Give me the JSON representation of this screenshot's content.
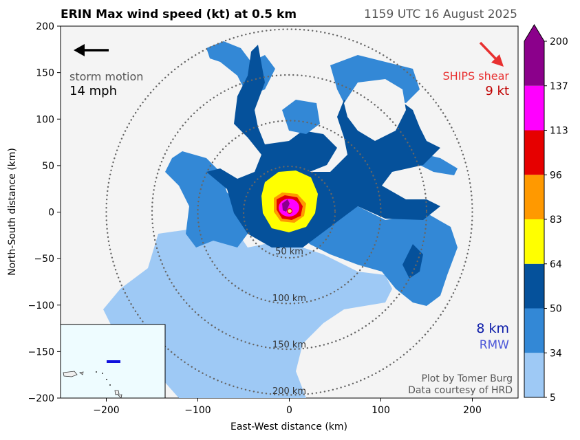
{
  "header": {
    "title": "ERIN Max wind speed (kt) at 0.5 km",
    "timestamp": "1159 UTC 16 August 2025"
  },
  "chart_data": {
    "type": "heatmap",
    "xlabel": "East-West distance (km)",
    "ylabel": "North-South distance (km)",
    "xlim": [
      -250,
      250
    ],
    "ylim": [
      -200,
      200
    ],
    "xticks": [
      -200,
      -100,
      0,
      100,
      200
    ],
    "yticks": [
      200,
      150,
      100,
      50,
      0,
      -50,
      -100,
      -150,
      -200
    ],
    "range_rings": [
      {
        "radius_km": 50,
        "label": "50 km"
      },
      {
        "radius_km": 100,
        "label": "100 km"
      },
      {
        "radius_km": 150,
        "label": "150 km"
      },
      {
        "radius_km": 200,
        "label": "200 km"
      }
    ],
    "colorbar": {
      "ticks": [
        "200",
        "137",
        "113",
        "96",
        "83",
        "64",
        "50",
        "34",
        "5"
      ],
      "bands": [
        {
          "from": 5,
          "to": 34,
          "color": "#9ec9f5"
        },
        {
          "from": 34,
          "to": 50,
          "color": "#3388d6"
        },
        {
          "from": 50,
          "to": 64,
          "color": "#05519b"
        },
        {
          "from": 64,
          "to": 83,
          "color": "#ffff00"
        },
        {
          "from": 83,
          "to": 96,
          "color": "#ff9900"
        },
        {
          "from": 96,
          "to": 113,
          "color": "#e60000"
        },
        {
          "from": 113,
          "to": 137,
          "color": "#ff00ff"
        },
        {
          "from": 137,
          "to": 200,
          "color": "#8b008b"
        }
      ]
    },
    "storm_motion": {
      "label": "storm motion",
      "speed": "14 mph",
      "direction": "west"
    },
    "ships_shear": {
      "label": "SHIPS shear",
      "value": "9 kt",
      "direction": "southeast"
    },
    "rmw": {
      "value": "8 km",
      "label": "RMW"
    },
    "credits": [
      "Plot by Tomer Burg",
      "Data courtesy of HRD"
    ]
  },
  "colors": {
    "plot_bg": "#f4f4f4",
    "inset_bg": "#eefcff",
    "shear": "#e83030",
    "shear_value": "#c00000",
    "rmw_value": "#0a1aa8",
    "rmw_label": "#4a55d8",
    "credit": "#555555",
    "motion_label": "#555555"
  }
}
